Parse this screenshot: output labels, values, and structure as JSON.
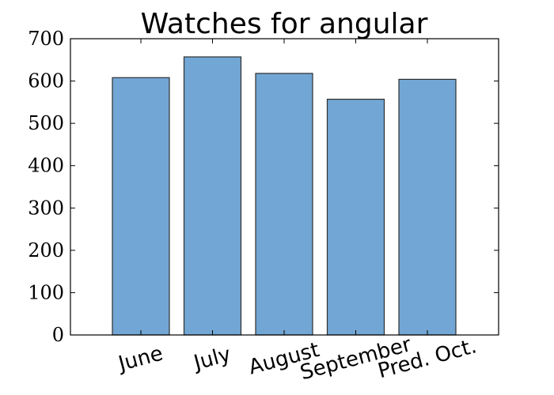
{
  "chart_data": {
    "type": "bar",
    "title": "Watches for angular",
    "categories": [
      "June",
      "July",
      "August",
      "September",
      "Pred. Oct."
    ],
    "values": [
      608,
      657,
      618,
      557,
      604
    ],
    "ylim": [
      0,
      700
    ],
    "yticks": [
      "0",
      "100",
      "200",
      "300",
      "400",
      "500",
      "600",
      "700"
    ],
    "xlabel": "",
    "ylabel": "",
    "grid": false,
    "legend": "none",
    "bar_color": "#72a6d4",
    "bar_edge_color": "#2f2f2f"
  }
}
